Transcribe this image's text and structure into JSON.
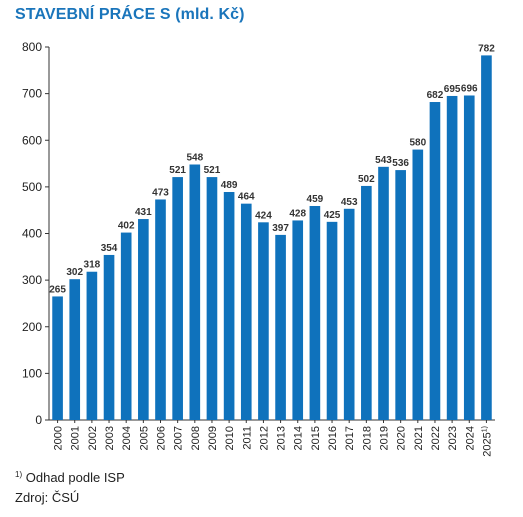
{
  "chart_data": {
    "type": "bar",
    "title": "STAVEBNÍ PRÁCE S (mld. Kč)",
    "categories": [
      "2000",
      "2001",
      "2002",
      "2003",
      "2004",
      "2005",
      "2006",
      "2007",
      "2008",
      "2009",
      "2010",
      "2011",
      "2012",
      "2013",
      "2014",
      "2015",
      "2016",
      "2017",
      "2018",
      "2019",
      "2020",
      "2021",
      "2022",
      "2023",
      "2024",
      "2025"
    ],
    "category_superscripts": {
      "2025": "1)"
    },
    "values": [
      265,
      302,
      318,
      354,
      402,
      431,
      473,
      521,
      548,
      521,
      489,
      464,
      424,
      397,
      428,
      459,
      425,
      453,
      502,
      543,
      536,
      580,
      682,
      695,
      696,
      782
    ],
    "ylim": [
      0,
      800
    ],
    "yticks": [
      0,
      100,
      200,
      300,
      400,
      500,
      600,
      700,
      800
    ],
    "bar_color": "#0f72bc",
    "grid": false,
    "xlabel": "",
    "ylabel": ""
  },
  "footnotes": {
    "note_marker": "1)",
    "note_text": "Odhad podle ISP",
    "source": "Zdroj: ČSÚ"
  }
}
